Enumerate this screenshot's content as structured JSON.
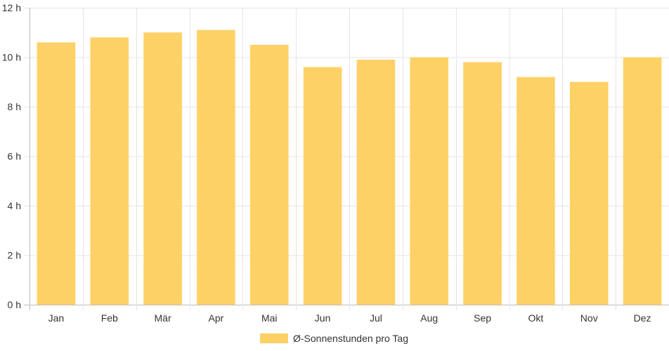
{
  "chart_data": {
    "type": "bar",
    "categories": [
      "Jan",
      "Feb",
      "Mär",
      "Apr",
      "Mai",
      "Jun",
      "Jul",
      "Aug",
      "Sep",
      "Okt",
      "Nov",
      "Dez"
    ],
    "series": [
      {
        "name": "Ø-Sonnenstunden pro Tag",
        "color": "#fed166",
        "values": [
          10.6,
          10.8,
          11.0,
          11.1,
          10.5,
          9.6,
          9.9,
          10.0,
          9.8,
          9.2,
          9.0,
          10.0
        ]
      }
    ],
    "ylim": [
      0,
      12
    ],
    "y_ticks": [
      {
        "value": 0,
        "label": "0 h"
      },
      {
        "value": 2,
        "label": "2 h"
      },
      {
        "value": 4,
        "label": "4 h"
      },
      {
        "value": 6,
        "label": "6 h"
      },
      {
        "value": 8,
        "label": "8 h"
      },
      {
        "value": 10,
        "label": "10 h"
      },
      {
        "value": 12,
        "label": "12 h"
      }
    ],
    "grid": true,
    "legend": {
      "position": "bottom",
      "label": "Ø-Sonnenstunden pro Tag"
    }
  }
}
